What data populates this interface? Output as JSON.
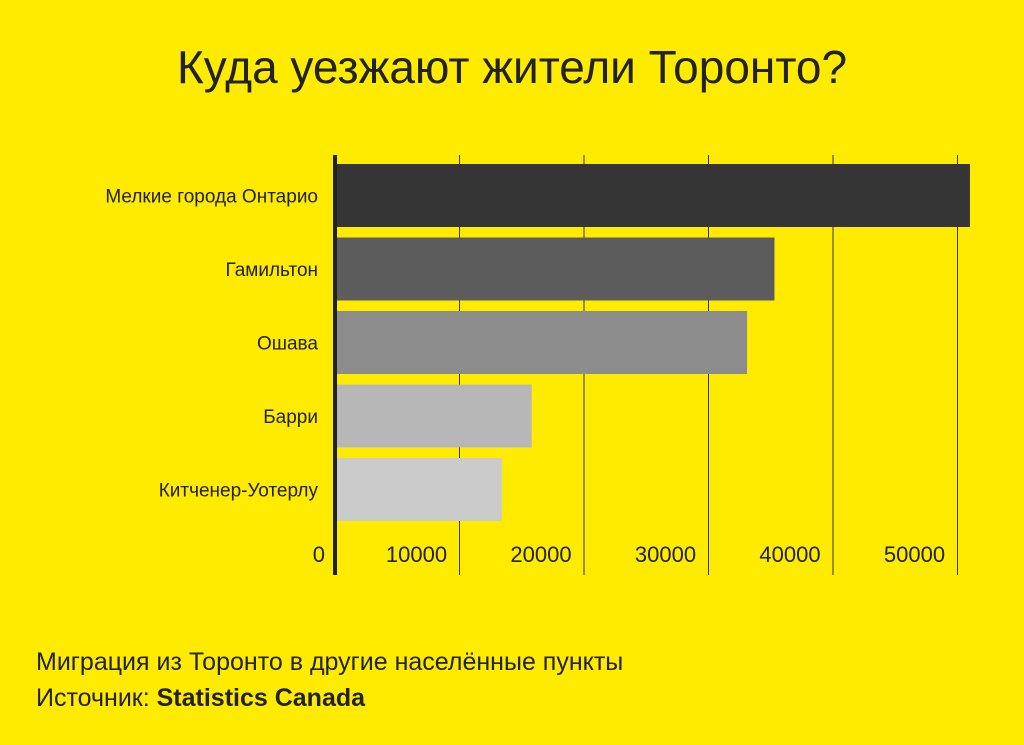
{
  "title": "Куда уезжают жители Торонто?",
  "footer": {
    "subtitle": "Миграция из Торонто в другие населённые пункты",
    "source_label": "Источник: ",
    "source_name": "Statistics Canada"
  },
  "chart_data": {
    "type": "bar",
    "orientation": "horizontal",
    "categories": [
      "Мелкие города Онтарио",
      "Гамильтон",
      "Ошава",
      "Барри",
      "Китченер-Уотерлу"
    ],
    "values": [
      51000,
      35300,
      33100,
      15800,
      13400
    ],
    "colors": [
      "#353535",
      "#5c5c5c",
      "#8c8c8c",
      "#b7b7b7",
      "#cbcbcb"
    ],
    "xlim": [
      0,
      52000
    ],
    "xticks": [
      0,
      10000,
      20000,
      30000,
      40000,
      50000
    ],
    "grid": true
  }
}
